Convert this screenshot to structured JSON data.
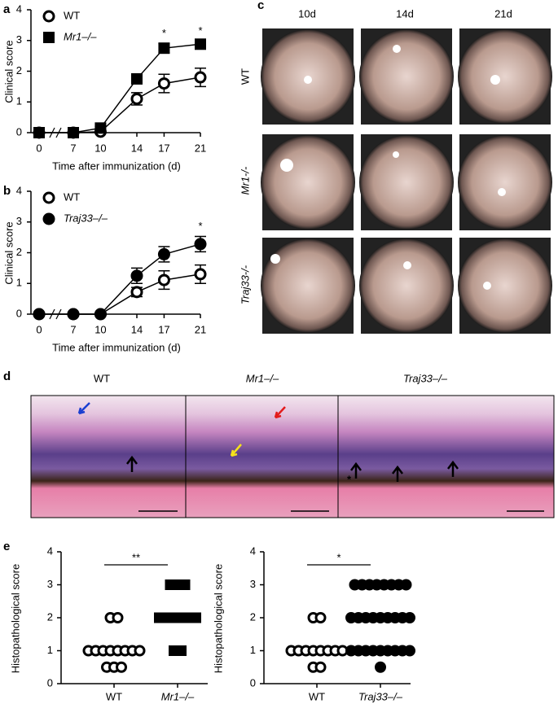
{
  "chart_data": [
    {
      "type": "line",
      "panel_label": "a",
      "ylabel": "Clinical score",
      "xlabel": "Time after immunization (d)",
      "x": [
        0,
        7,
        10,
        14,
        17,
        21
      ],
      "xlim": [
        0,
        21
      ],
      "xticks": [
        0,
        7,
        10,
        14,
        17,
        21
      ],
      "axis_break": true,
      "ylim": [
        0,
        4
      ],
      "yticks": [
        0,
        1,
        2,
        3,
        4
      ],
      "series": [
        {
          "name": "WT",
          "marker": "circle",
          "color": "#000000",
          "values": [
            0,
            0,
            0.03,
            1.1,
            1.6,
            1.8
          ],
          "errors": [
            0,
            0,
            0.05,
            0.2,
            0.3,
            0.3
          ]
        },
        {
          "name": "Mr1–/–",
          "marker": "square",
          "color": "#000000",
          "values": [
            0,
            0,
            0.15,
            1.75,
            2.75,
            2.88
          ],
          "errors": [
            0,
            0,
            0.05,
            0.1,
            0.15,
            0.1
          ]
        }
      ],
      "annotations": [
        {
          "x": 17,
          "text": "*"
        },
        {
          "x": 21,
          "text": "*"
        }
      ]
    },
    {
      "type": "line",
      "panel_label": "b",
      "ylabel": "Clinical score",
      "xlabel": "Time after immunization (d)",
      "x": [
        0,
        7,
        10,
        14,
        17,
        21
      ],
      "xlim": [
        0,
        21
      ],
      "xticks": [
        0,
        7,
        10,
        14,
        17,
        21
      ],
      "axis_break": true,
      "ylim": [
        0,
        4
      ],
      "yticks": [
        0,
        1,
        2,
        3,
        4
      ],
      "series": [
        {
          "name": "WT",
          "marker": "circle",
          "color": "#000000",
          "values": [
            0,
            0,
            0,
            0.72,
            1.11,
            1.3
          ],
          "errors": [
            0,
            0,
            0,
            0.15,
            0.3,
            0.3
          ]
        },
        {
          "name": "Traj33–/–",
          "marker": "dot",
          "color": "#000000",
          "values": [
            0,
            0,
            0,
            1.25,
            1.95,
            2.28
          ],
          "errors": [
            0,
            0,
            0,
            0.25,
            0.25,
            0.25
          ]
        }
      ],
      "annotations": [
        {
          "x": 21,
          "text": "*"
        }
      ]
    },
    {
      "type": "strip",
      "panel_label": "e",
      "ylabel": "Histopathological score",
      "categories": [
        "WT",
        "Mr1–/–"
      ],
      "markers": [
        "circle",
        "square"
      ],
      "ylim": [
        0,
        4
      ],
      "yticks": [
        0,
        1,
        2,
        3,
        4
      ],
      "significance": "**",
      "values": [
        [
          2,
          2,
          1,
          1,
          1,
          1,
          1,
          1,
          1,
          1,
          0.5,
          0.5,
          0.5
        ],
        [
          3,
          3,
          3,
          2,
          2,
          2,
          2,
          2,
          2,
          1,
          1
        ]
      ]
    },
    {
      "type": "strip",
      "ylabel": "Histopathological score",
      "categories": [
        "WT",
        "Traj33–/–"
      ],
      "markers": [
        "circle",
        "dot"
      ],
      "ylim": [
        0,
        4
      ],
      "yticks": [
        0,
        1,
        2,
        3,
        4
      ],
      "significance": "*",
      "values": [
        [
          2,
          2,
          1,
          1,
          1,
          1,
          1,
          1,
          1,
          1,
          0.5,
          0.5
        ],
        [
          3,
          3,
          3,
          3,
          3,
          3,
          3,
          3,
          2,
          2,
          2,
          2,
          2,
          2,
          2,
          2,
          2,
          1,
          1,
          1,
          1,
          1,
          1,
          1,
          1,
          1,
          0.5
        ]
      ]
    }
  ],
  "fundus_panel": {
    "label": "c",
    "columns": [
      "10d",
      "14d",
      "21d"
    ],
    "rows": [
      "WT",
      "Mr1-/-",
      "Traj33-/-"
    ]
  },
  "histology_panel": {
    "label": "d",
    "columns": [
      "WT",
      "Mr1–/–",
      "Traj33–/–"
    ],
    "annotation": "*"
  }
}
